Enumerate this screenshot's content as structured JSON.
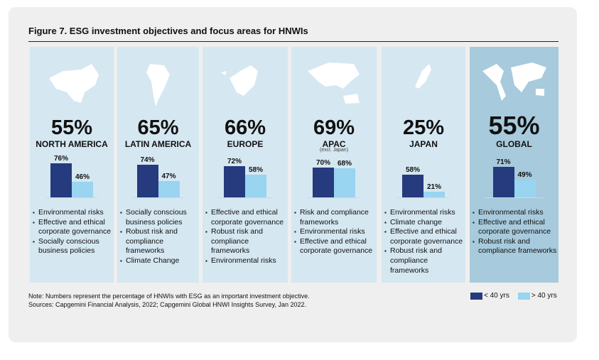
{
  "title": "Figure 7. ESG investment objectives and focus areas for HNWIs",
  "note": "Note: Numbers represent the percentage of HNWIs with ESG as an important investment objective.",
  "sources": "Sources: Capgemini Financial Analysis, 2022; Capgemini Global HNWI Insights Survey, Jan 2022.",
  "legend": {
    "under40": "< 40 yrs",
    "over40": "> 40 yrs"
  },
  "colors": {
    "under40": "#263a7e",
    "over40": "#99d4f1",
    "panel": "#d5e7f1",
    "global_panel": "#a7cadc"
  },
  "chart_data": {
    "type": "bar",
    "title": "Figure 7. ESG investment objectives and focus areas for HNWIs",
    "categories": [
      "NORTH AMERICA",
      "LATIN AMERICA",
      "EUROPE",
      "APAC",
      "JAPAN",
      "GLOBAL"
    ],
    "headline_pct": [
      "55%",
      "65%",
      "66%",
      "69%",
      "25%",
      "55%"
    ],
    "series": [
      {
        "name": "< 40 yrs",
        "values": [
          76,
          74,
          72,
          70,
          58,
          71
        ]
      },
      {
        "name": "> 40 yrs",
        "values": [
          46,
          47,
          58,
          68,
          21,
          49
        ]
      }
    ],
    "ylim": [
      0,
      100
    ]
  },
  "regions": [
    {
      "pct": "55%",
      "name": "NORTH AMERICA",
      "sub": "",
      "items": [
        "Environmental risks",
        "Effective and ethical corporate governance",
        "Socially conscious business policies"
      ]
    },
    {
      "pct": "65%",
      "name": "LATIN AMERICA",
      "sub": "",
      "items": [
        "Socially conscious business policies",
        "Robust risk and compliance frameworks",
        "Climate Change"
      ]
    },
    {
      "pct": "66%",
      "name": "EUROPE",
      "sub": "",
      "items": [
        "Effective and ethical corporate governance",
        "Robust risk and compliance frameworks",
        "Environmental risks"
      ]
    },
    {
      "pct": "69%",
      "name": "APAC",
      "sub": "(excl. Japan)",
      "items": [
        "Risk and compliance frameworks",
        "Environmental risks",
        "Effective and ethical corporate governance"
      ]
    },
    {
      "pct": "25%",
      "name": "JAPAN",
      "sub": "",
      "items": [
        "Environmental risks",
        "Climate change",
        "Effective and ethical corporate governance",
        "Robust risk and compliance frameworks"
      ]
    },
    {
      "pct": "55%",
      "name": "GLOBAL",
      "sub": "",
      "items": [
        "Environmental risks",
        "Effective and ethical corporate governance",
        "Robust risk and compliance frameworks"
      ]
    }
  ]
}
